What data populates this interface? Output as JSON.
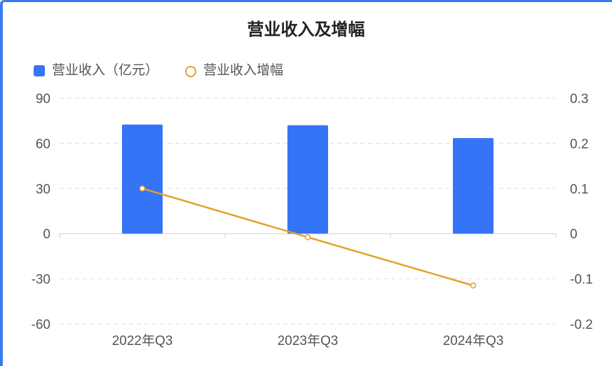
{
  "chart_data": {
    "type": "bar",
    "title": "营业收入及增幅",
    "categories": [
      "2022年Q3",
      "2023年Q3",
      "2024年Q3"
    ],
    "series": [
      {
        "name": "营业收入（亿元）",
        "type": "bar",
        "axis": "left",
        "values": [
          72.5,
          72.0,
          63.5
        ]
      },
      {
        "name": "营业收入增幅",
        "type": "line",
        "axis": "right",
        "values": [
          0.1,
          -0.008,
          -0.115
        ]
      }
    ],
    "y_left": {
      "ticks": [
        "90",
        "60",
        "30",
        "0",
        "-30",
        "-60"
      ],
      "range": [
        -60,
        90
      ]
    },
    "y_right": {
      "ticks": [
        "0.3",
        "0.2",
        "0.1",
        "0",
        "-0.1",
        "-0.2"
      ],
      "range": [
        -0.2,
        0.3
      ]
    },
    "grid": true,
    "legend": "top-left"
  },
  "colors": {
    "bar": "#3574f6",
    "line": "#e3a02a",
    "grid": "#dddddd",
    "axis": "#cccccc"
  }
}
